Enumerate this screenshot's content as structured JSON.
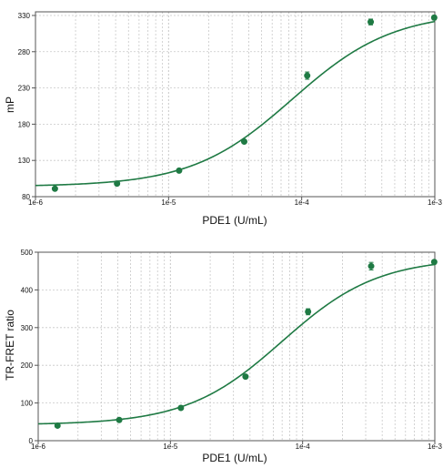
{
  "chart_data": [
    {
      "type": "scatter",
      "xlabel": "PDE1 (U/mL)",
      "ylabel": "mP",
      "xscale": "log",
      "xlim": [
        1e-06,
        0.001
      ],
      "ylim": [
        80,
        335
      ],
      "x_ticks": [
        {
          "value": 1e-06,
          "label": "1e-6"
        },
        {
          "value": 1e-05,
          "label": "1e-5"
        },
        {
          "value": 0.0001,
          "label": "1e-4"
        },
        {
          "value": 0.001,
          "label": "1e-3"
        }
      ],
      "y_ticks": [
        {
          "value": 80,
          "label": "80"
        },
        {
          "value": 130,
          "label": "130"
        },
        {
          "value": 180,
          "label": "180"
        },
        {
          "value": 230,
          "label": "230"
        },
        {
          "value": 280,
          "label": "280"
        },
        {
          "value": 330,
          "label": "330"
        }
      ],
      "grid": true,
      "colors": {
        "marker": "#1f7a44",
        "curve": "#1f7a44",
        "grid": "#c8c8c8",
        "axis": "#555555"
      },
      "series": [
        {
          "points": [
            {
              "x": 1.4e-06,
              "y": 91,
              "err": 1
            },
            {
              "x": 4.1e-06,
              "y": 98,
              "err": 1
            },
            {
              "x": 1.2e-05,
              "y": 116,
              "err": 2
            },
            {
              "x": 3.7e-05,
              "y": 156,
              "err": 2
            },
            {
              "x": 0.00011,
              "y": 247,
              "err": 5
            },
            {
              "x": 0.00033,
              "y": 321,
              "err": 4
            },
            {
              "x": 0.00099,
              "y": 327,
              "err": 3
            }
          ]
        }
      ],
      "fit": {
        "model": "four-parameter logistic",
        "bottom": 94,
        "top": 335,
        "ec50": 8.5e-05,
        "hill": 1.15
      }
    },
    {
      "type": "scatter",
      "xlabel": "PDE1 (U/mL)",
      "ylabel": "TR-FRET ratio",
      "xscale": "log",
      "xlim": [
        1e-06,
        0.001
      ],
      "ylim": [
        0,
        500
      ],
      "x_ticks": [
        {
          "value": 1e-06,
          "label": "1e-6"
        },
        {
          "value": 1e-05,
          "label": "1e-5"
        },
        {
          "value": 0.0001,
          "label": "1e-4"
        },
        {
          "value": 0.001,
          "label": "1e-3"
        }
      ],
      "y_ticks": [
        {
          "value": 0,
          "label": "0"
        },
        {
          "value": 100,
          "label": "100"
        },
        {
          "value": 200,
          "label": "200"
        },
        {
          "value": 300,
          "label": "300"
        },
        {
          "value": 400,
          "label": "400"
        },
        {
          "value": 500,
          "label": "500"
        }
      ],
      "grid": true,
      "colors": {
        "marker": "#1f7a44",
        "curve": "#1f7a44",
        "grid": "#c8c8c8",
        "axis": "#555555"
      },
      "series": [
        {
          "points": [
            {
              "x": 1.4e-06,
              "y": 40,
              "err": 2
            },
            {
              "x": 4.1e-06,
              "y": 55,
              "err": 2
            },
            {
              "x": 1.2e-05,
              "y": 87,
              "err": 4
            },
            {
              "x": 3.7e-05,
              "y": 170,
              "err": 3
            },
            {
              "x": 0.00011,
              "y": 342,
              "err": 8
            },
            {
              "x": 0.00033,
              "y": 463,
              "err": 10
            },
            {
              "x": 0.00099,
              "y": 474,
              "err": 5
            }
          ]
        }
      ],
      "fit": {
        "model": "four-parameter logistic",
        "bottom": 42,
        "top": 485,
        "ec50": 7e-05,
        "hill": 1.2
      }
    }
  ]
}
